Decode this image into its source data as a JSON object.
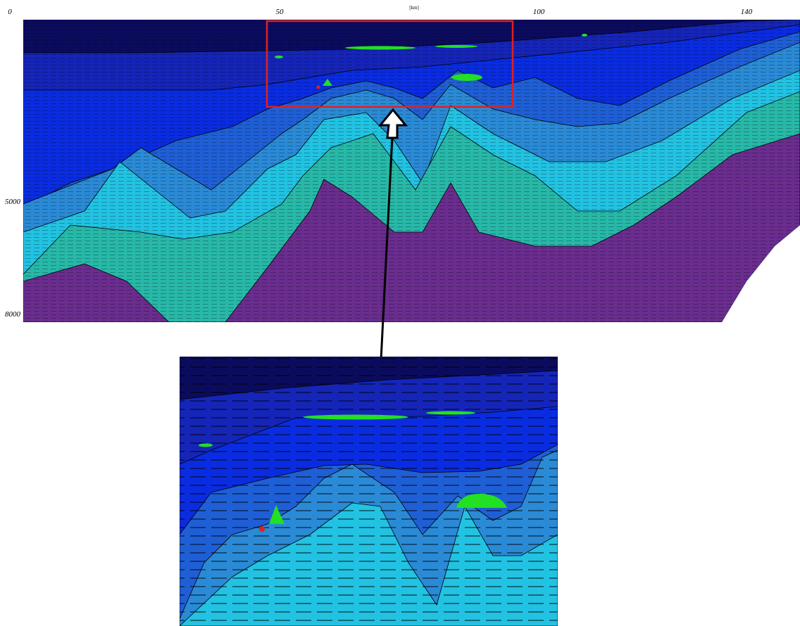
{
  "section": {
    "x_unit": "[km]",
    "x_ticks": [
      "50",
      "100",
      "140"
    ],
    "y_ticks": [
      "0",
      "5000",
      "8000"
    ]
  }
}
